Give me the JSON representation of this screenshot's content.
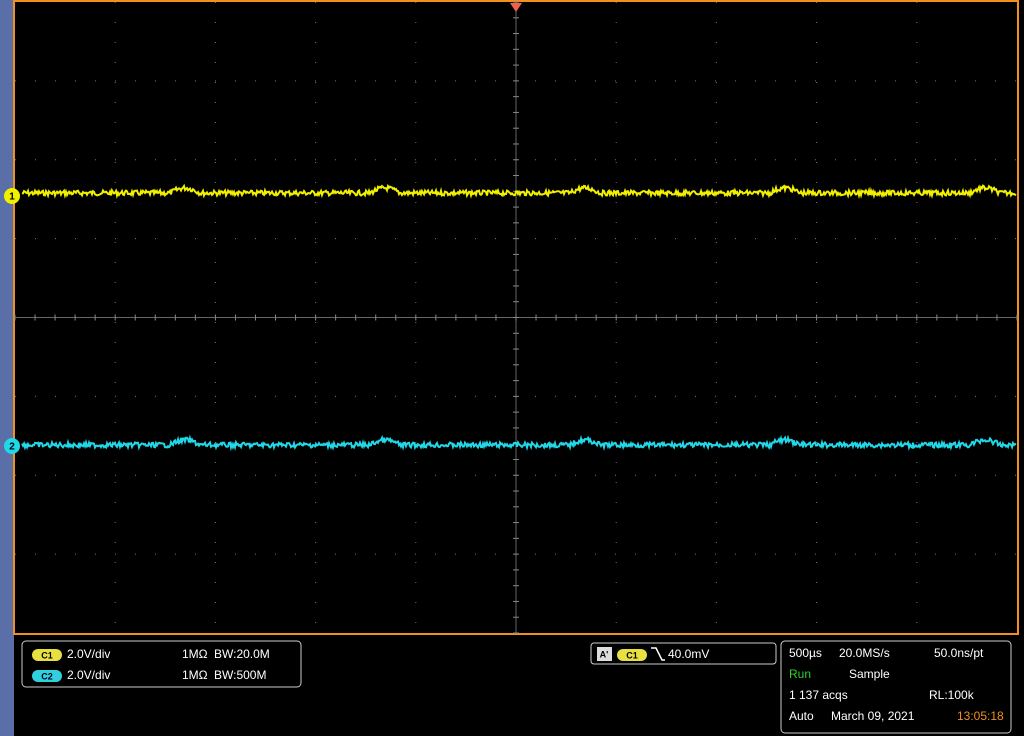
{
  "channel_markers": [
    "1",
    "2"
  ],
  "channels": [
    {
      "badge": "C1",
      "scale": "2.0V/div",
      "impedance": "1MΩ",
      "bandwidth": "BW:20.0M"
    },
    {
      "badge": "C2",
      "scale": "2.0V/div",
      "impedance": "1MΩ",
      "bandwidth": "BW:500M"
    }
  ],
  "trigger": {
    "badge": "A'",
    "source": "C1",
    "level": "40.0mV"
  },
  "acquisition": {
    "time_div": "500µs",
    "sample_rate": "20.0MS/s",
    "resolution": "50.0ns/pt",
    "state": "Run",
    "mode": "Sample",
    "acqs": "1 137 acqs",
    "record_length": "RL:100k",
    "trigger_mode": "Auto",
    "date": "March 09, 2021",
    "time": "13:05:18"
  }
}
